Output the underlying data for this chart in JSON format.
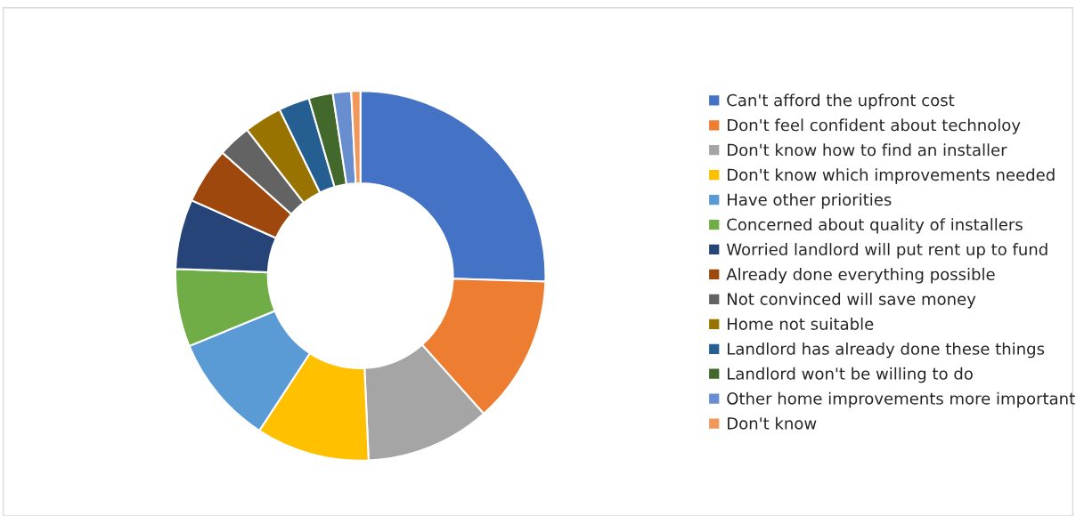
{
  "chart_data": {
    "type": "donut",
    "legend": "right",
    "categories": [
      "Can't afford the upfront cost",
      "Don't feel confident about technoloy",
      "Don't know how to find an installer",
      "Don't know which improvements needed",
      "Have other priorities",
      "Concerned about quality of installers",
      "Worried landlord will put rent up to fund",
      "Already done everything possible",
      "Not convinced will save money",
      "Home not suitable",
      "Landlord has already done these things",
      "Landlord won't be willing to do",
      "Other home improvements more important",
      "Don't know"
    ],
    "values": [
      25.5,
      12.9,
      10.9,
      9.9,
      9.6,
      6.8,
      6.1,
      4.9,
      2.9,
      3.3,
      2.7,
      2.1,
      1.6,
      0.8
    ],
    "colors": [
      "#4472c4",
      "#ed7d31",
      "#a5a5a5",
      "#ffc000",
      "#5b9bd5",
      "#70ad47",
      "#264478",
      "#9e480e",
      "#636363",
      "#997300",
      "#255e91",
      "#43682b",
      "#698ed0",
      "#f1975a"
    ]
  }
}
